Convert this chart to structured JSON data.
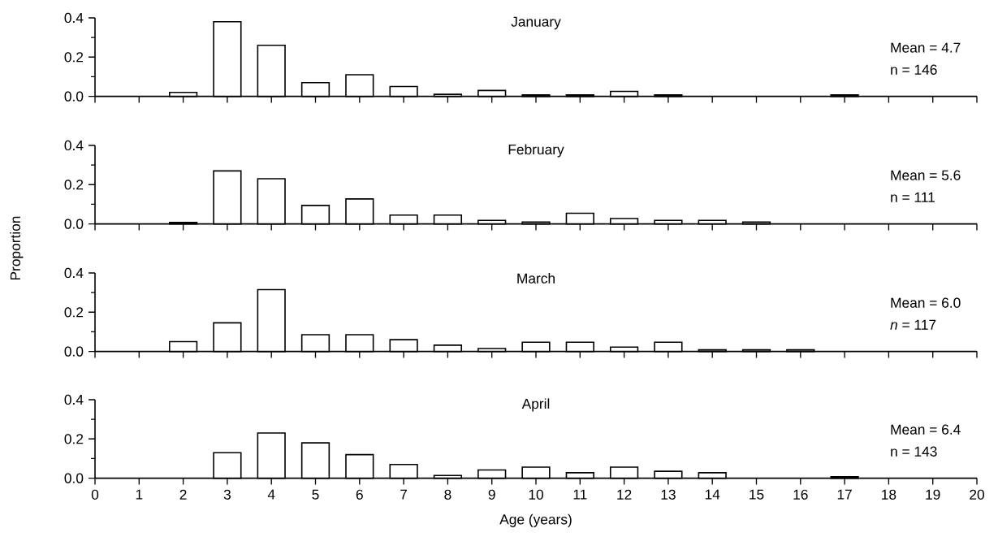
{
  "chart_data": [
    {
      "type": "bar",
      "title": "January",
      "x": [
        2,
        3,
        4,
        5,
        6,
        7,
        8,
        9,
        10,
        11,
        12,
        13,
        17
      ],
      "values": [
        0.02,
        0.38,
        0.26,
        0.07,
        0.11,
        0.05,
        0.01,
        0.03,
        0.007,
        0.007,
        0.025,
        0.007,
        0.007
      ],
      "color": "#ffffff",
      "xlim": [
        0,
        20
      ],
      "xticks": [
        0,
        1,
        2,
        3,
        4,
        5,
        6,
        7,
        8,
        9,
        10,
        11,
        12,
        13,
        14,
        15,
        16,
        17,
        18,
        19,
        20
      ],
      "ylim": [
        0,
        0.4
      ],
      "yticks": [
        {
          "value": 0,
          "label": "0.0"
        },
        {
          "value": 0.1,
          "label": null
        },
        {
          "value": 0.2,
          "label": "0.2"
        },
        {
          "value": 0.3,
          "label": null
        },
        {
          "value": 0.4,
          "label": "0.4"
        }
      ],
      "tick_labels": "y",
      "annotations": [
        "Mean = 4.7",
        "n = 146"
      ]
    },
    {
      "type": "bar",
      "title": "February",
      "ylabel": "Proportion",
      "x": [
        2,
        3,
        4,
        5,
        6,
        7,
        8,
        9,
        10,
        11,
        12,
        13,
        14,
        15
      ],
      "values": [
        0.007,
        0.27,
        0.23,
        0.094,
        0.127,
        0.045,
        0.045,
        0.018,
        0.009,
        0.054,
        0.027,
        0.018,
        0.018,
        0.009
      ],
      "color": "#ffffff",
      "xlim": [
        0,
        20
      ],
      "xticks": [
        0,
        1,
        2,
        3,
        4,
        5,
        6,
        7,
        8,
        9,
        10,
        11,
        12,
        13,
        14,
        15,
        16,
        17,
        18,
        19,
        20
      ],
      "ylim": [
        0,
        0.4
      ],
      "yticks": [
        {
          "value": 0,
          "label": "0.0"
        },
        {
          "value": 0.1,
          "label": null
        },
        {
          "value": 0.2,
          "label": "0.2"
        },
        {
          "value": 0.3,
          "label": null
        },
        {
          "value": 0.4,
          "label": "0.4"
        }
      ],
      "tick_labels": "y",
      "annotations": [
        "Mean = 5.6",
        "n = 111"
      ]
    },
    {
      "type": "bar",
      "title": "March",
      "x": [
        2,
        3,
        4,
        5,
        6,
        7,
        8,
        9,
        10,
        11,
        12,
        13,
        14,
        15,
        16
      ],
      "values": [
        0.05,
        0.146,
        0.315,
        0.085,
        0.085,
        0.06,
        0.032,
        0.015,
        0.047,
        0.047,
        0.022,
        0.047,
        0.008,
        0.008,
        0.008
      ],
      "color": "#ffffff",
      "xlim": [
        0,
        20
      ],
      "xticks": [
        0,
        1,
        2,
        3,
        4,
        5,
        6,
        7,
        8,
        9,
        10,
        11,
        12,
        13,
        14,
        15,
        16,
        17,
        18,
        19,
        20
      ],
      "ylim": [
        0,
        0.4
      ],
      "yticks": [
        {
          "value": 0,
          "label": "0.0"
        },
        {
          "value": 0.1,
          "label": null
        },
        {
          "value": 0.2,
          "label": "0.2"
        },
        {
          "value": 0.3,
          "label": null
        },
        {
          "value": 0.4,
          "label": "0.4"
        }
      ],
      "tick_labels": "y",
      "annotations": [
        "Mean = 6.0",
        "*n* = 117"
      ]
    },
    {
      "type": "bar",
      "title": "April",
      "xlabel": "Age (years)",
      "x": [
        3,
        4,
        5,
        6,
        7,
        8,
        9,
        10,
        11,
        12,
        13,
        14,
        17
      ],
      "values": [
        0.13,
        0.23,
        0.18,
        0.12,
        0.07,
        0.014,
        0.042,
        0.056,
        0.028,
        0.056,
        0.035,
        0.028,
        0.007
      ],
      "color": "#ffffff",
      "xlim": [
        0,
        20
      ],
      "xticks": [
        0,
        1,
        2,
        3,
        4,
        5,
        6,
        7,
        8,
        9,
        10,
        11,
        12,
        13,
        14,
        15,
        16,
        17,
        18,
        19,
        20
      ],
      "ylim": [
        0,
        0.4
      ],
      "yticks": [
        {
          "value": 0,
          "label": "0.0"
        },
        {
          "value": 0.1,
          "label": null
        },
        {
          "value": 0.2,
          "label": "0.2"
        },
        {
          "value": 0.3,
          "label": null
        },
        {
          "value": 0.4,
          "label": "0.4"
        }
      ],
      "annotations": [
        "Mean = 6.4",
        "n = 143"
      ]
    }
  ]
}
